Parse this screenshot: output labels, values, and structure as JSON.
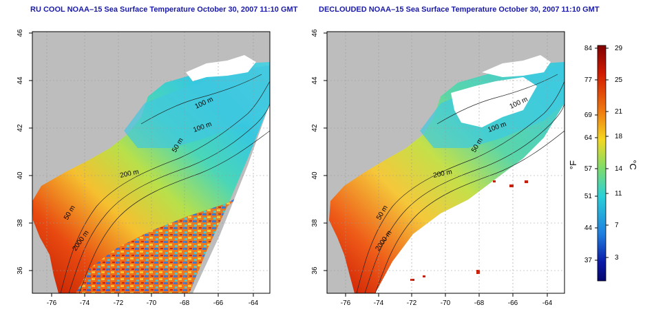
{
  "maps": [
    {
      "id": "left",
      "title": "RU COOL NOAA–15 Sea Surface Temperature October 30, 2007 11:10 GMT",
      "x_ticks": [
        "-76",
        "-74",
        "-72",
        "-70",
        "-68",
        "-66",
        "-64"
      ],
      "y_ticks": [
        "36",
        "38",
        "40",
        "42",
        "44",
        "46"
      ],
      "contour_labels": [
        "100 m",
        "100 m",
        "50 m",
        "200 m",
        "50 m",
        "2000 m"
      ]
    },
    {
      "id": "right",
      "title": "DECLOUDED NOAA–15 Sea Surface Temperature October 30, 2007 11:10 GMT",
      "x_ticks": [
        "-76",
        "-74",
        "-72",
        "-70",
        "-68",
        "-66",
        "-64"
      ],
      "y_ticks": [
        "36",
        "38",
        "40",
        "42",
        "44",
        "46"
      ],
      "contour_labels": [
        "100 m",
        "100 m",
        "50 m",
        "200 m",
        "50 m",
        "2000 m"
      ]
    }
  ],
  "colorbar": {
    "fahrenheit_ticks": [
      "84",
      "77",
      "69",
      "64",
      "57",
      "51",
      "44",
      "37"
    ],
    "celsius_ticks": [
      "29",
      "25",
      "21",
      "18",
      "14",
      "11",
      "7",
      "3"
    ],
    "fahrenheit_unit": "°F",
    "celsius_unit": "°C"
  },
  "colors": {
    "land": "#bdbdbd",
    "title": "#1a1aa8",
    "colormap": [
      "#800000",
      "#d11a00",
      "#f07a10",
      "#f5d820",
      "#7fdc6a",
      "#2ad0d8",
      "#1f7fe0",
      "#0a1aa8",
      "#06066e"
    ]
  }
}
